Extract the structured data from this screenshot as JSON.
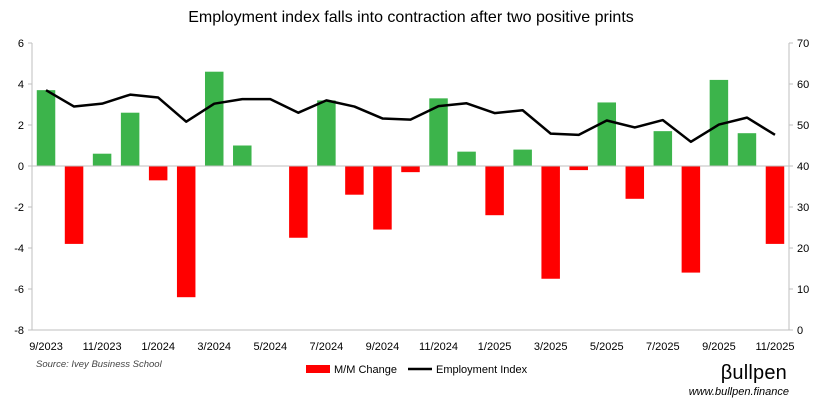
{
  "chart_data": {
    "type": "bar+line",
    "title": "Employment index falls into contraction after two positive prints",
    "x": [
      "9/2023",
      "10/2023",
      "11/2023",
      "12/2023",
      "1/2024",
      "2/2024",
      "3/2024",
      "4/2024",
      "5/2024",
      "6/2024",
      "7/2024",
      "8/2024",
      "9/2024",
      "10/2024",
      "11/2024",
      "12/2024",
      "1/2025",
      "2/2025",
      "3/2025",
      "4/2025",
      "5/2025",
      "6/2025",
      "7/2025",
      "8/2025",
      "9/2025",
      "10/2025",
      "11/2025"
    ],
    "x_tick_labels": [
      "9/2023",
      "11/2023",
      "1/2024",
      "3/2024",
      "5/2024",
      "7/2024",
      "9/2024",
      "11/2024",
      "1/2025",
      "3/2025",
      "5/2025",
      "7/2025",
      "9/2025",
      "11/2025"
    ],
    "series": [
      {
        "name": "M/M Change",
        "type": "bar",
        "axis": "left",
        "values": [
          3.7,
          -3.8,
          0.6,
          2.6,
          -0.7,
          -6.4,
          4.6,
          1.0,
          0.0,
          -3.5,
          3.2,
          -1.4,
          -3.1,
          -0.3,
          3.3,
          0.7,
          -2.4,
          0.8,
          -5.5,
          -0.2,
          3.1,
          -1.6,
          1.7,
          -5.2,
          4.2,
          1.6,
          -3.8
        ],
        "positive_color": "#3cb44b",
        "negative_color": "#ff0000"
      },
      {
        "name": "Employment Index",
        "type": "line",
        "axis": "right",
        "values": [
          58.5,
          54.5,
          55.2,
          57.4,
          56.7,
          50.8,
          55.2,
          56.3,
          56.3,
          53.0,
          56.0,
          54.5,
          51.6,
          51.3,
          54.6,
          55.3,
          52.9,
          53.6,
          47.9,
          47.6,
          51.1,
          49.4,
          51.2,
          45.9,
          50.1,
          51.8,
          47.6
        ],
        "color": "#000000"
      }
    ],
    "y_left": {
      "min": -8,
      "max": 6,
      "ticks": [
        -8,
        -6,
        -4,
        -2,
        0,
        2,
        4,
        6
      ]
    },
    "y_right": {
      "min": 0,
      "max": 70,
      "ticks": [
        0,
        10,
        20,
        30,
        40,
        50,
        60,
        70
      ]
    },
    "legend": {
      "placement": "bottom",
      "entries": [
        "M/M Change",
        "Employment Index"
      ]
    },
    "grid": false
  },
  "source": "Source: Ivey Business School",
  "brand": {
    "logo_text": "βullpen",
    "url": "www.bullpen.finance"
  }
}
